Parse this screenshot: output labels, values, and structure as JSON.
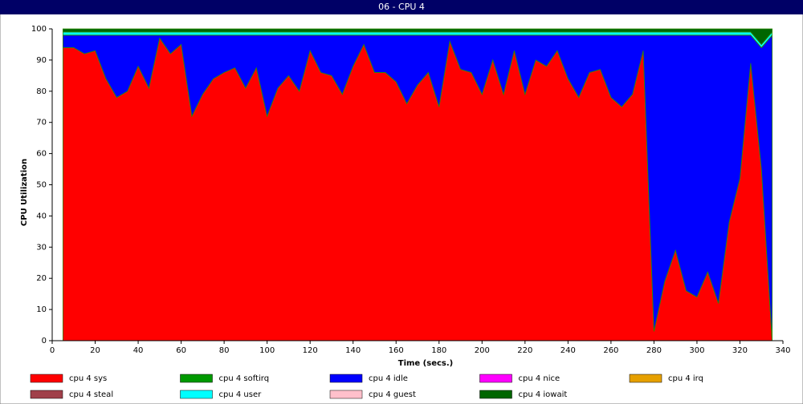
{
  "chart_data": {
    "type": "stacked_area",
    "title": "06 - CPU 4",
    "xlabel": "Time (secs.)",
    "ylabel": "CPU Utilization",
    "x": [
      5,
      10,
      15,
      20,
      25,
      30,
      35,
      40,
      45,
      50,
      55,
      60,
      65,
      70,
      75,
      80,
      85,
      90,
      95,
      100,
      105,
      110,
      115,
      120,
      125,
      130,
      135,
      140,
      145,
      150,
      155,
      160,
      165,
      170,
      175,
      180,
      185,
      190,
      195,
      200,
      205,
      210,
      215,
      220,
      225,
      230,
      235,
      240,
      245,
      250,
      255,
      260,
      265,
      270,
      275,
      280,
      285,
      290,
      295,
      300,
      305,
      310,
      315,
      320,
      325,
      330,
      335
    ],
    "series": [
      {
        "name": "cpu 4 sys",
        "color": "#ff0000",
        "values": [
          94,
          94,
          92,
          93,
          84,
          78,
          80,
          88,
          81,
          97,
          92,
          95,
          72,
          79,
          84,
          86,
          87.5,
          81,
          87.5,
          72,
          81,
          85,
          80,
          93,
          86,
          85,
          79,
          88,
          95,
          86,
          86,
          83,
          76,
          82,
          86,
          75,
          96,
          87,
          86,
          79,
          90,
          79,
          93,
          79,
          90,
          88,
          93,
          84,
          78,
          86,
          87,
          78,
          75,
          79,
          93,
          3,
          19,
          29,
          16,
          14,
          22,
          12,
          38,
          52,
          89,
          55,
          0
        ]
      },
      {
        "name": "cpu 4 softirq",
        "color": "#009900",
        "values": [
          0,
          0,
          0,
          0,
          0,
          0,
          0,
          0,
          0,
          0,
          0,
          0,
          0,
          0,
          0,
          0,
          0,
          0,
          0,
          0,
          0,
          0,
          0,
          0,
          0,
          0,
          0,
          0,
          0,
          0,
          0,
          0,
          0,
          0,
          0,
          0,
          0,
          0,
          0,
          0,
          0,
          0,
          0,
          0,
          0,
          0,
          0,
          0,
          0,
          0,
          0,
          0,
          0,
          0,
          0,
          0,
          0,
          0,
          0,
          0,
          0,
          0,
          0,
          0,
          0,
          0,
          0
        ]
      },
      {
        "name": "cpu 4 idle",
        "color": "#0000ff",
        "values": [
          4,
          4,
          6,
          5,
          14,
          20,
          18,
          10,
          17,
          1,
          6,
          3,
          26,
          19,
          14,
          12,
          10.5,
          17,
          10.5,
          26,
          17,
          13,
          18,
          5,
          12,
          13,
          19,
          10,
          3,
          12,
          12,
          15,
          22,
          16,
          12,
          23,
          2,
          11,
          12,
          19,
          8,
          19,
          5,
          19,
          8,
          10,
          5,
          14,
          20,
          12,
          11,
          20,
          23,
          19,
          5,
          95,
          79,
          69,
          82,
          84,
          76,
          86,
          60,
          46,
          9,
          39,
          98
        ]
      },
      {
        "name": "cpu 4 nice",
        "color": "#ff00ff",
        "values": [
          0,
          0,
          0,
          0,
          0,
          0,
          0,
          0,
          0,
          0,
          0,
          0,
          0,
          0,
          0,
          0,
          0,
          0,
          0,
          0,
          0,
          0,
          0,
          0,
          0,
          0,
          0,
          0,
          0,
          0,
          0,
          0,
          0,
          0,
          0,
          0,
          0,
          0,
          0,
          0,
          0,
          0,
          0,
          0,
          0,
          0,
          0,
          0,
          0,
          0,
          0,
          0,
          0,
          0,
          0,
          0,
          0,
          0,
          0,
          0,
          0,
          0,
          0,
          0,
          0,
          0,
          0
        ]
      },
      {
        "name": "cpu 4 irq",
        "color": "#e6a000",
        "values": [
          0,
          0,
          0,
          0,
          0,
          0,
          0,
          0,
          0,
          0,
          0,
          0,
          0,
          0,
          0,
          0,
          0,
          0,
          0,
          0,
          0,
          0,
          0,
          0,
          0,
          0,
          0,
          0,
          0,
          0,
          0,
          0,
          0,
          0,
          0,
          0,
          0,
          0,
          0,
          0,
          0,
          0,
          0,
          0,
          0,
          0,
          0,
          0,
          0,
          0,
          0,
          0,
          0,
          0,
          0,
          0,
          0,
          0,
          0,
          0,
          0,
          0,
          0,
          0,
          0,
          0,
          0
        ]
      },
      {
        "name": "cpu 4 steal",
        "color": "#a0404a",
        "values": [
          0,
          0,
          0,
          0,
          0,
          0,
          0,
          0,
          0,
          0,
          0,
          0,
          0,
          0,
          0,
          0,
          0,
          0,
          0,
          0,
          0,
          0,
          0,
          0,
          0,
          0,
          0,
          0,
          0,
          0,
          0,
          0,
          0,
          0,
          0,
          0,
          0,
          0,
          0,
          0,
          0,
          0,
          0,
          0,
          0,
          0,
          0,
          0,
          0,
          0,
          0,
          0,
          0,
          0,
          0,
          0,
          0,
          0,
          0,
          0,
          0,
          0,
          0,
          0,
          0,
          0,
          0
        ]
      },
      {
        "name": "cpu 4 user",
        "color": "#00ffff",
        "values": [
          1,
          1,
          1,
          1,
          1,
          1,
          1,
          1,
          1,
          1,
          1,
          1,
          1,
          1,
          1,
          1,
          1,
          1,
          1,
          1,
          1,
          1,
          1,
          1,
          1,
          1,
          1,
          1,
          1,
          1,
          1,
          1,
          1,
          1,
          1,
          1,
          1,
          1,
          1,
          1,
          1,
          1,
          1,
          1,
          1,
          1,
          1,
          1,
          1,
          1,
          1,
          1,
          1,
          1,
          1,
          1,
          1,
          1,
          1,
          1,
          1,
          1,
          1,
          1,
          1,
          1,
          1
        ]
      },
      {
        "name": "cpu 4 guest",
        "color": "#ffc0cb",
        "values": [
          0,
          0,
          0,
          0,
          0,
          0,
          0,
          0,
          0,
          0,
          0,
          0,
          0,
          0,
          0,
          0,
          0,
          0,
          0,
          0,
          0,
          0,
          0,
          0,
          0,
          0,
          0,
          0,
          0,
          0,
          0,
          0,
          0,
          0,
          0,
          0,
          0,
          0,
          0,
          0,
          0,
          0,
          0,
          0,
          0,
          0,
          0,
          0,
          0,
          0,
          0,
          0,
          0,
          0,
          0,
          0,
          0,
          0,
          0,
          0,
          0,
          0,
          0,
          0,
          0,
          0,
          0
        ]
      },
      {
        "name": "cpu 4 iowait",
        "color": "#006600",
        "values": [
          1,
          1,
          1,
          1,
          1,
          1,
          1,
          1,
          1,
          1,
          1,
          1,
          1,
          1,
          1,
          1,
          1,
          1,
          1,
          1,
          1,
          1,
          1,
          1,
          1,
          1,
          1,
          1,
          1,
          1,
          1,
          1,
          1,
          1,
          1,
          1,
          1,
          1,
          1,
          1,
          1,
          1,
          1,
          1,
          1,
          1,
          1,
          1,
          1,
          1,
          1,
          1,
          1,
          1,
          1,
          1,
          1,
          1,
          1,
          1,
          1,
          1,
          1,
          1,
          1,
          5,
          1
        ]
      }
    ],
    "xlim": [
      0,
      340
    ],
    "xticks": [
      0,
      20,
      40,
      60,
      80,
      100,
      120,
      140,
      160,
      180,
      200,
      220,
      240,
      260,
      280,
      300,
      320,
      340
    ],
    "ylim": [
      0,
      100
    ],
    "yticks": [
      0,
      10,
      20,
      30,
      40,
      50,
      60,
      70,
      80,
      90,
      100
    ],
    "grid": false,
    "legend": "bottom"
  }
}
